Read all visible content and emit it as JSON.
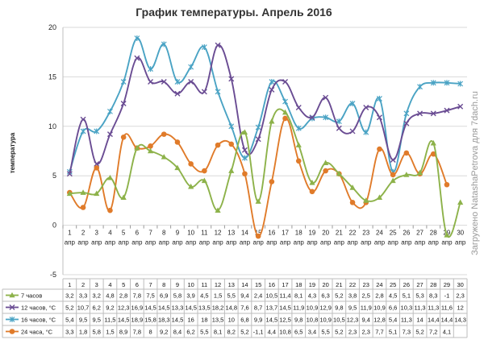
{
  "chart_data": {
    "type": "line",
    "title": "График температуры. Апрель 2016",
    "ylabel": "температура",
    "ylim": [
      -5,
      20
    ],
    "yticks": [
      -5,
      0,
      5,
      10,
      15,
      20
    ],
    "grid": true,
    "legend_placement": "table-below",
    "x": [
      "1",
      "2",
      "3",
      "4",
      "5",
      "6",
      "7",
      "8",
      "9",
      "10",
      "11",
      "12",
      "13",
      "14",
      "15",
      "16",
      "17",
      "18",
      "19",
      "20",
      "21",
      "22",
      "23",
      "24",
      "25",
      "26",
      "27",
      "28",
      "29",
      "30"
    ],
    "x_sublabel": "апр",
    "series": [
      {
        "name": "7 часов",
        "color": "#8db24a",
        "marker": "triangle",
        "values": [
          3.2,
          3.3,
          3.2,
          4.8,
          2.8,
          7.8,
          7.5,
          6.9,
          5.8,
          3.9,
          4.5,
          1.5,
          5.5,
          9.4,
          2.4,
          10.5,
          11.4,
          8.1,
          4.3,
          6.3,
          5.2,
          3.8,
          2.5,
          2.8,
          4.5,
          5.1,
          5.3,
          8.3,
          -1,
          2.3
        ],
        "display": [
          "3,2",
          "3,3",
          "3,2",
          "4,8",
          "2,8",
          "7,8",
          "7,5",
          "6,9",
          "5,8",
          "3,9",
          "4,5",
          "1,5",
          "5,5",
          "9,4",
          "2,4",
          "10,5",
          "11,4",
          "8,1",
          "4,3",
          "6,3",
          "5,2",
          "3,8",
          "2,5",
          "2,8",
          "4,5",
          "5,1",
          "5,3",
          "8,3",
          "-1",
          "2,3"
        ]
      },
      {
        "name": "12 часов, °С",
        "color": "#6a4c93",
        "marker": "x",
        "values": [
          5.2,
          10.7,
          6.2,
          9.2,
          12.3,
          16.9,
          14.5,
          14.5,
          13.3,
          14.5,
          13.5,
          18.2,
          14.8,
          7.6,
          8.7,
          13.7,
          14.5,
          11.9,
          10.9,
          12.9,
          9.8,
          9.5,
          11.9,
          10.9,
          6.6,
          10.3,
          11.3,
          11.3,
          11.6,
          12
        ],
        "display": [
          "5,2",
          "10,7",
          "6,2",
          "9,2",
          "12,3",
          "16,9",
          "14,5",
          "14,5",
          "13,3",
          "14,5",
          "13,5",
          "18,2",
          "14,8",
          "7,6",
          "8,7",
          "13,7",
          "14,5",
          "11,9",
          "10,9",
          "12,9",
          "9,8",
          "9,5",
          "11,9",
          "10,9",
          "6,6",
          "10,3",
          "11,3",
          "11,3",
          "11,6",
          "12"
        ]
      },
      {
        "name": "16 часов, °С",
        "color": "#4aa3c4",
        "marker": "star",
        "values": [
          5.4,
          9.5,
          9.5,
          11.5,
          14.5,
          18.9,
          15.8,
          18.3,
          14.5,
          16,
          18,
          13.5,
          10,
          6.8,
          9.9,
          14.5,
          12.5,
          9.8,
          10.8,
          10.9,
          10.5,
          12.3,
          9.4,
          12.8,
          5.4,
          11.3,
          14,
          14.4,
          14.4,
          14.3
        ],
        "display": [
          "5,4",
          "9,5",
          "9,5",
          "11,5",
          "14,5",
          "18,9",
          "15,8",
          "18,3",
          "14,5",
          "16",
          "18",
          "13,5",
          "10",
          "6,8",
          "9,9",
          "14,5",
          "12,5",
          "9,8",
          "10,8",
          "10,9",
          "10,5",
          "12,3",
          "9,4",
          "12,8",
          "5,4",
          "11,3",
          "14",
          "14,4",
          "14,4",
          "14,3"
        ]
      },
      {
        "name": "24 часа, °С",
        "color": "#e07b2a",
        "marker": "circle",
        "values": [
          3.3,
          1.8,
          5.8,
          1.5,
          8.9,
          7.8,
          8,
          9.2,
          8.4,
          6.2,
          5.5,
          8.1,
          8.2,
          5.2,
          -1.1,
          4.4,
          10.8,
          6.5,
          3.4,
          5.5,
          5.2,
          2.3,
          2.3,
          7.7,
          5.1,
          7.3,
          5.2,
          7.2,
          4.1,
          null
        ],
        "display": [
          "3,3",
          "1,8",
          "5,8",
          "1,5",
          "8,9",
          "7,8",
          "8",
          "9,2",
          "8,4",
          "6,2",
          "5,5",
          "8,1",
          "8,2",
          "5,2",
          "-1,1",
          "4,4",
          "10,8",
          "6,5",
          "3,4",
          "5,5",
          "5,2",
          "2,3",
          "2,3",
          "7,7",
          "5,1",
          "7,3",
          "5,2",
          "7,2",
          "4,1",
          ""
        ]
      }
    ]
  },
  "watermark": "Загружено NatashaPetrova для 7dach.ru"
}
